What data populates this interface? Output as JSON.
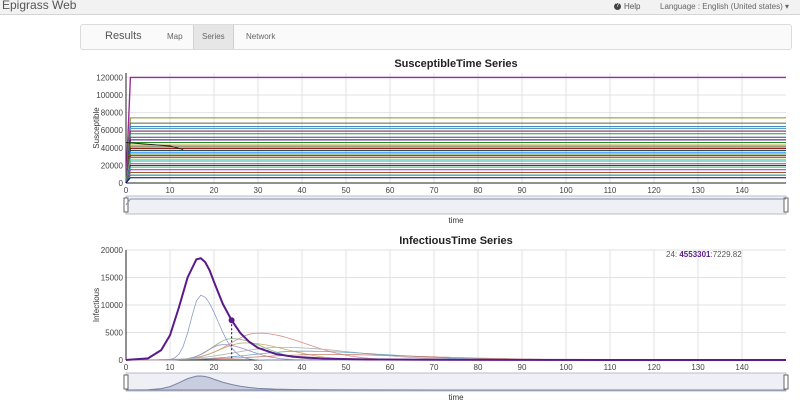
{
  "app": {
    "title": "Epigrass Web"
  },
  "header": {
    "help_label": "Help",
    "language_label": "Language",
    "language_value": "English (United states)"
  },
  "tabs": {
    "results_label": "Results",
    "items": [
      {
        "label": "Map"
      },
      {
        "label": "Series"
      },
      {
        "label": "Network"
      }
    ],
    "active": "Series"
  },
  "hover": {
    "prefix": "24:",
    "value": "4553301",
    "suffix": ":7229.82"
  },
  "chart_data": [
    {
      "type": "line",
      "title": "SusceptibleTime Series",
      "xlabel": "time",
      "ylabel": "Susceptible",
      "xlim": [
        0,
        150
      ],
      "ylim": [
        0,
        125000
      ],
      "xticks": [
        0,
        10,
        20,
        30,
        40,
        50,
        60,
        70,
        80,
        90,
        100,
        110,
        120,
        130,
        140
      ],
      "yticks": [
        0,
        20000,
        40000,
        60000,
        80000,
        100000,
        120000
      ],
      "grid": true,
      "series_levels": [
        120000,
        74000,
        68000,
        64000,
        62000,
        59000,
        56000,
        52000,
        49000,
        46000,
        43000,
        41000,
        39000,
        37000,
        35000,
        33000,
        31000,
        29000,
        27000,
        25000,
        22000,
        20000,
        18000,
        15000,
        12000,
        9000,
        6000
      ],
      "series_colors": [
        "#9b2a9b",
        "#8c8c3a",
        "#666633",
        "#2b7ab5",
        "#5aa0c8",
        "#8b2252",
        "#2e8b57",
        "#483d8b",
        "#4b0082",
        "#228b22",
        "#b8860b",
        "#556b2f",
        "#8b0000",
        "#2f4f4f",
        "#1e90ff",
        "#6b8e23",
        "#800000",
        "#4682b4",
        "#9acd32",
        "#20b2aa",
        "#cd5c5c",
        "#191970",
        "#3cb371",
        "#8a2be2",
        "#a0522d",
        "#008080",
        "#000080"
      ],
      "highlight": {
        "x": [
          0,
          5,
          10,
          13
        ],
        "y": [
          46000,
          44000,
          42000,
          38000
        ]
      }
    },
    {
      "type": "line",
      "title": "InfectiousTime Series",
      "xlabel": "time",
      "ylabel": "Infectious",
      "xlim": [
        0,
        150
      ],
      "ylim": [
        0,
        20000
      ],
      "xticks": [
        0,
        10,
        20,
        30,
        40,
        50,
        60,
        70,
        80,
        90,
        100,
        110,
        120,
        130,
        140
      ],
      "yticks": [
        0,
        5000,
        10000,
        15000,
        20000
      ],
      "grid": true,
      "main_series": {
        "color": "#5b1a8a",
        "x": [
          0,
          5,
          8,
          10,
          12,
          14,
          16,
          17,
          18,
          19,
          20,
          22,
          24,
          26,
          28,
          30,
          34,
          38,
          45,
          55,
          70,
          90,
          110,
          130,
          150
        ],
        "y": [
          0,
          300,
          1800,
          4500,
          9500,
          15000,
          18300,
          18500,
          17800,
          16300,
          14200,
          10200,
          7229.82,
          4900,
          3300,
          2200,
          1100,
          600,
          250,
          100,
          40,
          15,
          5,
          2,
          0
        ],
        "marker": {
          "x": 24,
          "y": 7229.82
        }
      },
      "other_series": [
        {
          "color": "#8e9bc9",
          "peak_x": 17,
          "peak": 11800,
          "width": 3.2
        },
        {
          "color": "#d98c8c",
          "peak_x": 30,
          "peak": 4900,
          "width": 9
        },
        {
          "color": "#7fb77f",
          "peak_x": 24,
          "peak": 3900,
          "width": 6
        },
        {
          "color": "#c9a86a",
          "peak_x": 27,
          "peak": 3100,
          "width": 8
        },
        {
          "color": "#9d8ac6",
          "peak_x": 22,
          "peak": 2800,
          "width": 5
        },
        {
          "color": "#b0b0b0",
          "peak_x": 35,
          "peak": 2300,
          "width": 14
        },
        {
          "color": "#6aa6c9",
          "peak_x": 40,
          "peak": 1600,
          "width": 16
        },
        {
          "color": "#c97a6a",
          "peak_x": 45,
          "peak": 1000,
          "width": 20
        }
      ]
    }
  ]
}
